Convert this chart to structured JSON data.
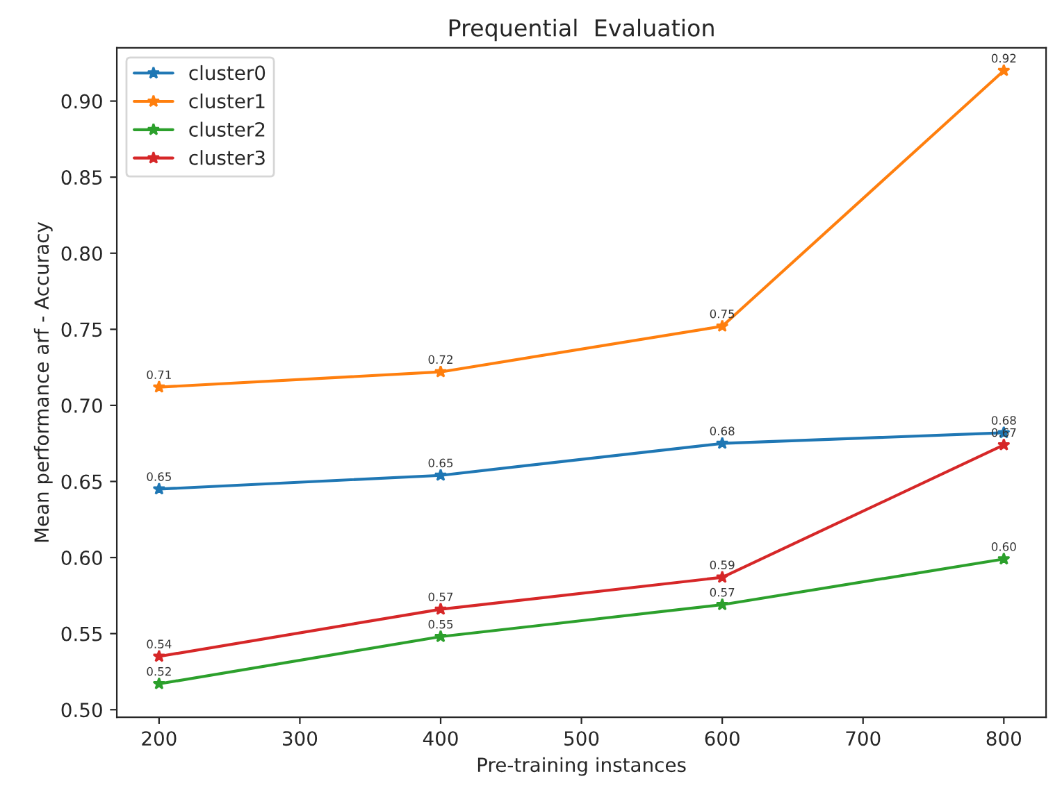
{
  "chart_data": {
    "type": "line",
    "title": "Prequential  Evaluation",
    "xlabel": "Pre-training instances",
    "ylabel": "Mean performance arf - Accuracy",
    "x": [
      200,
      400,
      600,
      800
    ],
    "series": [
      {
        "name": "cluster0",
        "color": "#1f77b4",
        "values": [
          0.645,
          0.654,
          0.675,
          0.682
        ],
        "value_labels": [
          "0.65",
          "0.65",
          "0.68",
          "0.68"
        ]
      },
      {
        "name": "cluster1",
        "color": "#ff7f0e",
        "values": [
          0.712,
          0.722,
          0.752,
          0.92
        ],
        "value_labels": [
          "0.71",
          "0.72",
          "0.75",
          "0.92"
        ]
      },
      {
        "name": "cluster2",
        "color": "#2ca02c",
        "values": [
          0.517,
          0.548,
          0.569,
          0.599
        ],
        "value_labels": [
          "0.52",
          "0.55",
          "0.57",
          "0.60"
        ]
      },
      {
        "name": "cluster3",
        "color": "#d62728",
        "values": [
          0.535,
          0.566,
          0.587,
          0.674
        ],
        "value_labels": [
          "0.54",
          "0.57",
          "0.59",
          "0.67"
        ]
      }
    ],
    "xlim": [
      170,
      830
    ],
    "xticks": [
      200,
      300,
      400,
      500,
      600,
      700,
      800
    ],
    "ylim": [
      0.495,
      0.935
    ],
    "yticks": [
      {
        "value": 0.5,
        "label": "0.50"
      },
      {
        "value": 0.55,
        "label": "0.55"
      },
      {
        "value": 0.6,
        "label": "0.60"
      },
      {
        "value": 0.65,
        "label": "0.65"
      },
      {
        "value": 0.7,
        "label": "0.70"
      },
      {
        "value": 0.75,
        "label": "0.75"
      },
      {
        "value": 0.8,
        "label": "0.80"
      },
      {
        "value": 0.85,
        "label": "0.85"
      },
      {
        "value": 0.9,
        "label": "0.90"
      }
    ],
    "legend": "top left",
    "marker": "star",
    "line_style": "solid",
    "grid": false
  }
}
